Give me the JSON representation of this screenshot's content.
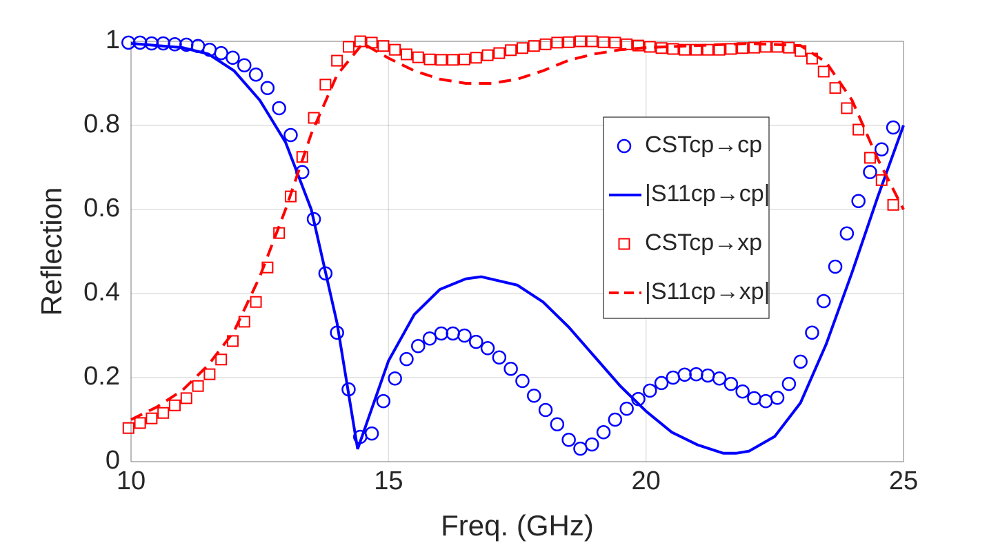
{
  "chart_data": {
    "type": "line",
    "xlabel": "Freq. (GHz)",
    "ylabel": "Reflection",
    "xlim": [
      10,
      25
    ],
    "ylim": [
      0,
      1
    ],
    "xticks": [
      10,
      15,
      20,
      25
    ],
    "yticks": [
      0,
      0.2,
      0.4,
      0.6,
      0.8,
      1
    ],
    "grid": true,
    "legend": "right",
    "series": [
      {
        "name": "CSTcp→cp",
        "color": "#0000ff",
        "marker": "circle",
        "style": "none",
        "x": [
          9.95,
          10.175,
          10.4,
          10.625,
          10.85,
          11.075,
          11.3,
          11.525,
          11.75,
          11.975,
          12.2,
          12.425,
          12.65,
          12.875,
          13.1,
          13.325,
          13.55,
          13.775,
          14,
          14.225,
          14.45,
          14.675,
          14.9,
          15.125,
          15.35,
          15.575,
          15.8,
          16.025,
          16.25,
          16.475,
          16.7,
          16.925,
          17.15,
          17.375,
          17.6,
          17.825,
          18.05,
          18.275,
          18.5,
          18.725,
          18.95,
          19.175,
          19.4,
          19.625,
          19.85,
          20.075,
          20.3,
          20.525,
          20.75,
          20.975,
          21.2,
          21.425,
          21.65,
          21.875,
          22.1,
          22.325,
          22.55,
          22.775,
          23,
          23.225,
          23.45,
          23.675,
          23.9,
          24.125,
          24.35,
          24.575,
          24.8
        ],
        "values": [
          0.997,
          0.997,
          0.995,
          0.995,
          0.993,
          0.992,
          0.989,
          0.98,
          0.972,
          0.961,
          0.943,
          0.921,
          0.889,
          0.841,
          0.777,
          0.689,
          0.577,
          0.448,
          0.307,
          0.172,
          0.059,
          0.067,
          0.144,
          0.198,
          0.244,
          0.275,
          0.293,
          0.305,
          0.305,
          0.3,
          0.285,
          0.27,
          0.248,
          0.221,
          0.192,
          0.157,
          0.123,
          0.089,
          0.052,
          0.031,
          0.041,
          0.07,
          0.1,
          0.126,
          0.149,
          0.169,
          0.187,
          0.2,
          0.207,
          0.208,
          0.205,
          0.198,
          0.185,
          0.167,
          0.151,
          0.144,
          0.152,
          0.185,
          0.238,
          0.307,
          0.382,
          0.464,
          0.543,
          0.62,
          0.689,
          0.743,
          0.795
        ]
      },
      {
        "name": "|S11cp→cp|",
        "color": "#0000ff",
        "marker": "none",
        "style": "solid",
        "x": [
          10,
          11,
          11.5,
          12,
          12.5,
          13,
          13.5,
          14,
          14.4,
          14.6,
          15,
          15.5,
          16,
          16.5,
          16.8,
          17.5,
          18,
          18.5,
          19,
          19.5,
          20,
          20.5,
          21,
          21.5,
          21.75,
          22,
          22.5,
          23,
          23.5,
          24,
          24.5,
          25
        ],
        "values": [
          0.995,
          0.985,
          0.97,
          0.93,
          0.86,
          0.76,
          0.6,
          0.33,
          0.03,
          0.1,
          0.24,
          0.35,
          0.41,
          0.435,
          0.44,
          0.42,
          0.38,
          0.32,
          0.25,
          0.18,
          0.12,
          0.07,
          0.04,
          0.02,
          0.02,
          0.025,
          0.06,
          0.14,
          0.28,
          0.45,
          0.63,
          0.8
        ]
      },
      {
        "name": "CSTcp→xp",
        "color": "#ff0000",
        "marker": "square",
        "style": "none",
        "x": [
          9.95,
          10.175,
          10.4,
          10.625,
          10.85,
          11.075,
          11.3,
          11.525,
          11.75,
          11.975,
          12.2,
          12.425,
          12.65,
          12.875,
          13.1,
          13.325,
          13.55,
          13.775,
          14,
          14.225,
          14.45,
          14.675,
          14.9,
          15.125,
          15.35,
          15.575,
          15.8,
          16.025,
          16.25,
          16.475,
          16.7,
          16.925,
          17.15,
          17.375,
          17.6,
          17.825,
          18.05,
          18.275,
          18.5,
          18.725,
          18.95,
          19.175,
          19.4,
          19.625,
          19.85,
          20.075,
          20.3,
          20.525,
          20.75,
          20.975,
          21.2,
          21.425,
          21.65,
          21.875,
          22.1,
          22.325,
          22.55,
          22.775,
          23,
          23.225,
          23.45,
          23.675,
          23.9,
          24.125,
          24.35,
          24.575,
          24.8
        ],
        "values": [
          0.08,
          0.092,
          0.103,
          0.116,
          0.134,
          0.151,
          0.18,
          0.208,
          0.243,
          0.287,
          0.333,
          0.38,
          0.462,
          0.544,
          0.631,
          0.725,
          0.818,
          0.897,
          0.954,
          0.987,
          1.0,
          0.997,
          0.989,
          0.98,
          0.969,
          0.962,
          0.957,
          0.956,
          0.956,
          0.957,
          0.961,
          0.967,
          0.972,
          0.979,
          0.984,
          0.989,
          0.993,
          0.997,
          0.998,
          1.0,
          1.0,
          0.998,
          0.997,
          0.993,
          0.99,
          0.987,
          0.984,
          0.982,
          0.98,
          0.98,
          0.98,
          0.98,
          0.982,
          0.984,
          0.985,
          0.987,
          0.987,
          0.985,
          0.977,
          0.959,
          0.928,
          0.889,
          0.841,
          0.79,
          0.723,
          0.67,
          0.611
        ]
      },
      {
        "name": "|S11cp→xp|",
        "color": "#ff0000",
        "marker": "none",
        "style": "dashed",
        "x": [
          10,
          10.5,
          11,
          11.5,
          12,
          12.5,
          13,
          13.5,
          14,
          14.5,
          15,
          15.5,
          16,
          16.5,
          17,
          17.5,
          18,
          18.5,
          19,
          19.5,
          20,
          21,
          22,
          23,
          23.5,
          24,
          24.5,
          25
        ],
        "values": [
          0.1,
          0.13,
          0.17,
          0.23,
          0.31,
          0.44,
          0.6,
          0.78,
          0.92,
          0.995,
          0.96,
          0.93,
          0.91,
          0.9,
          0.9,
          0.91,
          0.93,
          0.955,
          0.97,
          0.98,
          0.985,
          0.99,
          0.995,
          0.99,
          0.95,
          0.86,
          0.72,
          0.6
        ]
      }
    ]
  }
}
